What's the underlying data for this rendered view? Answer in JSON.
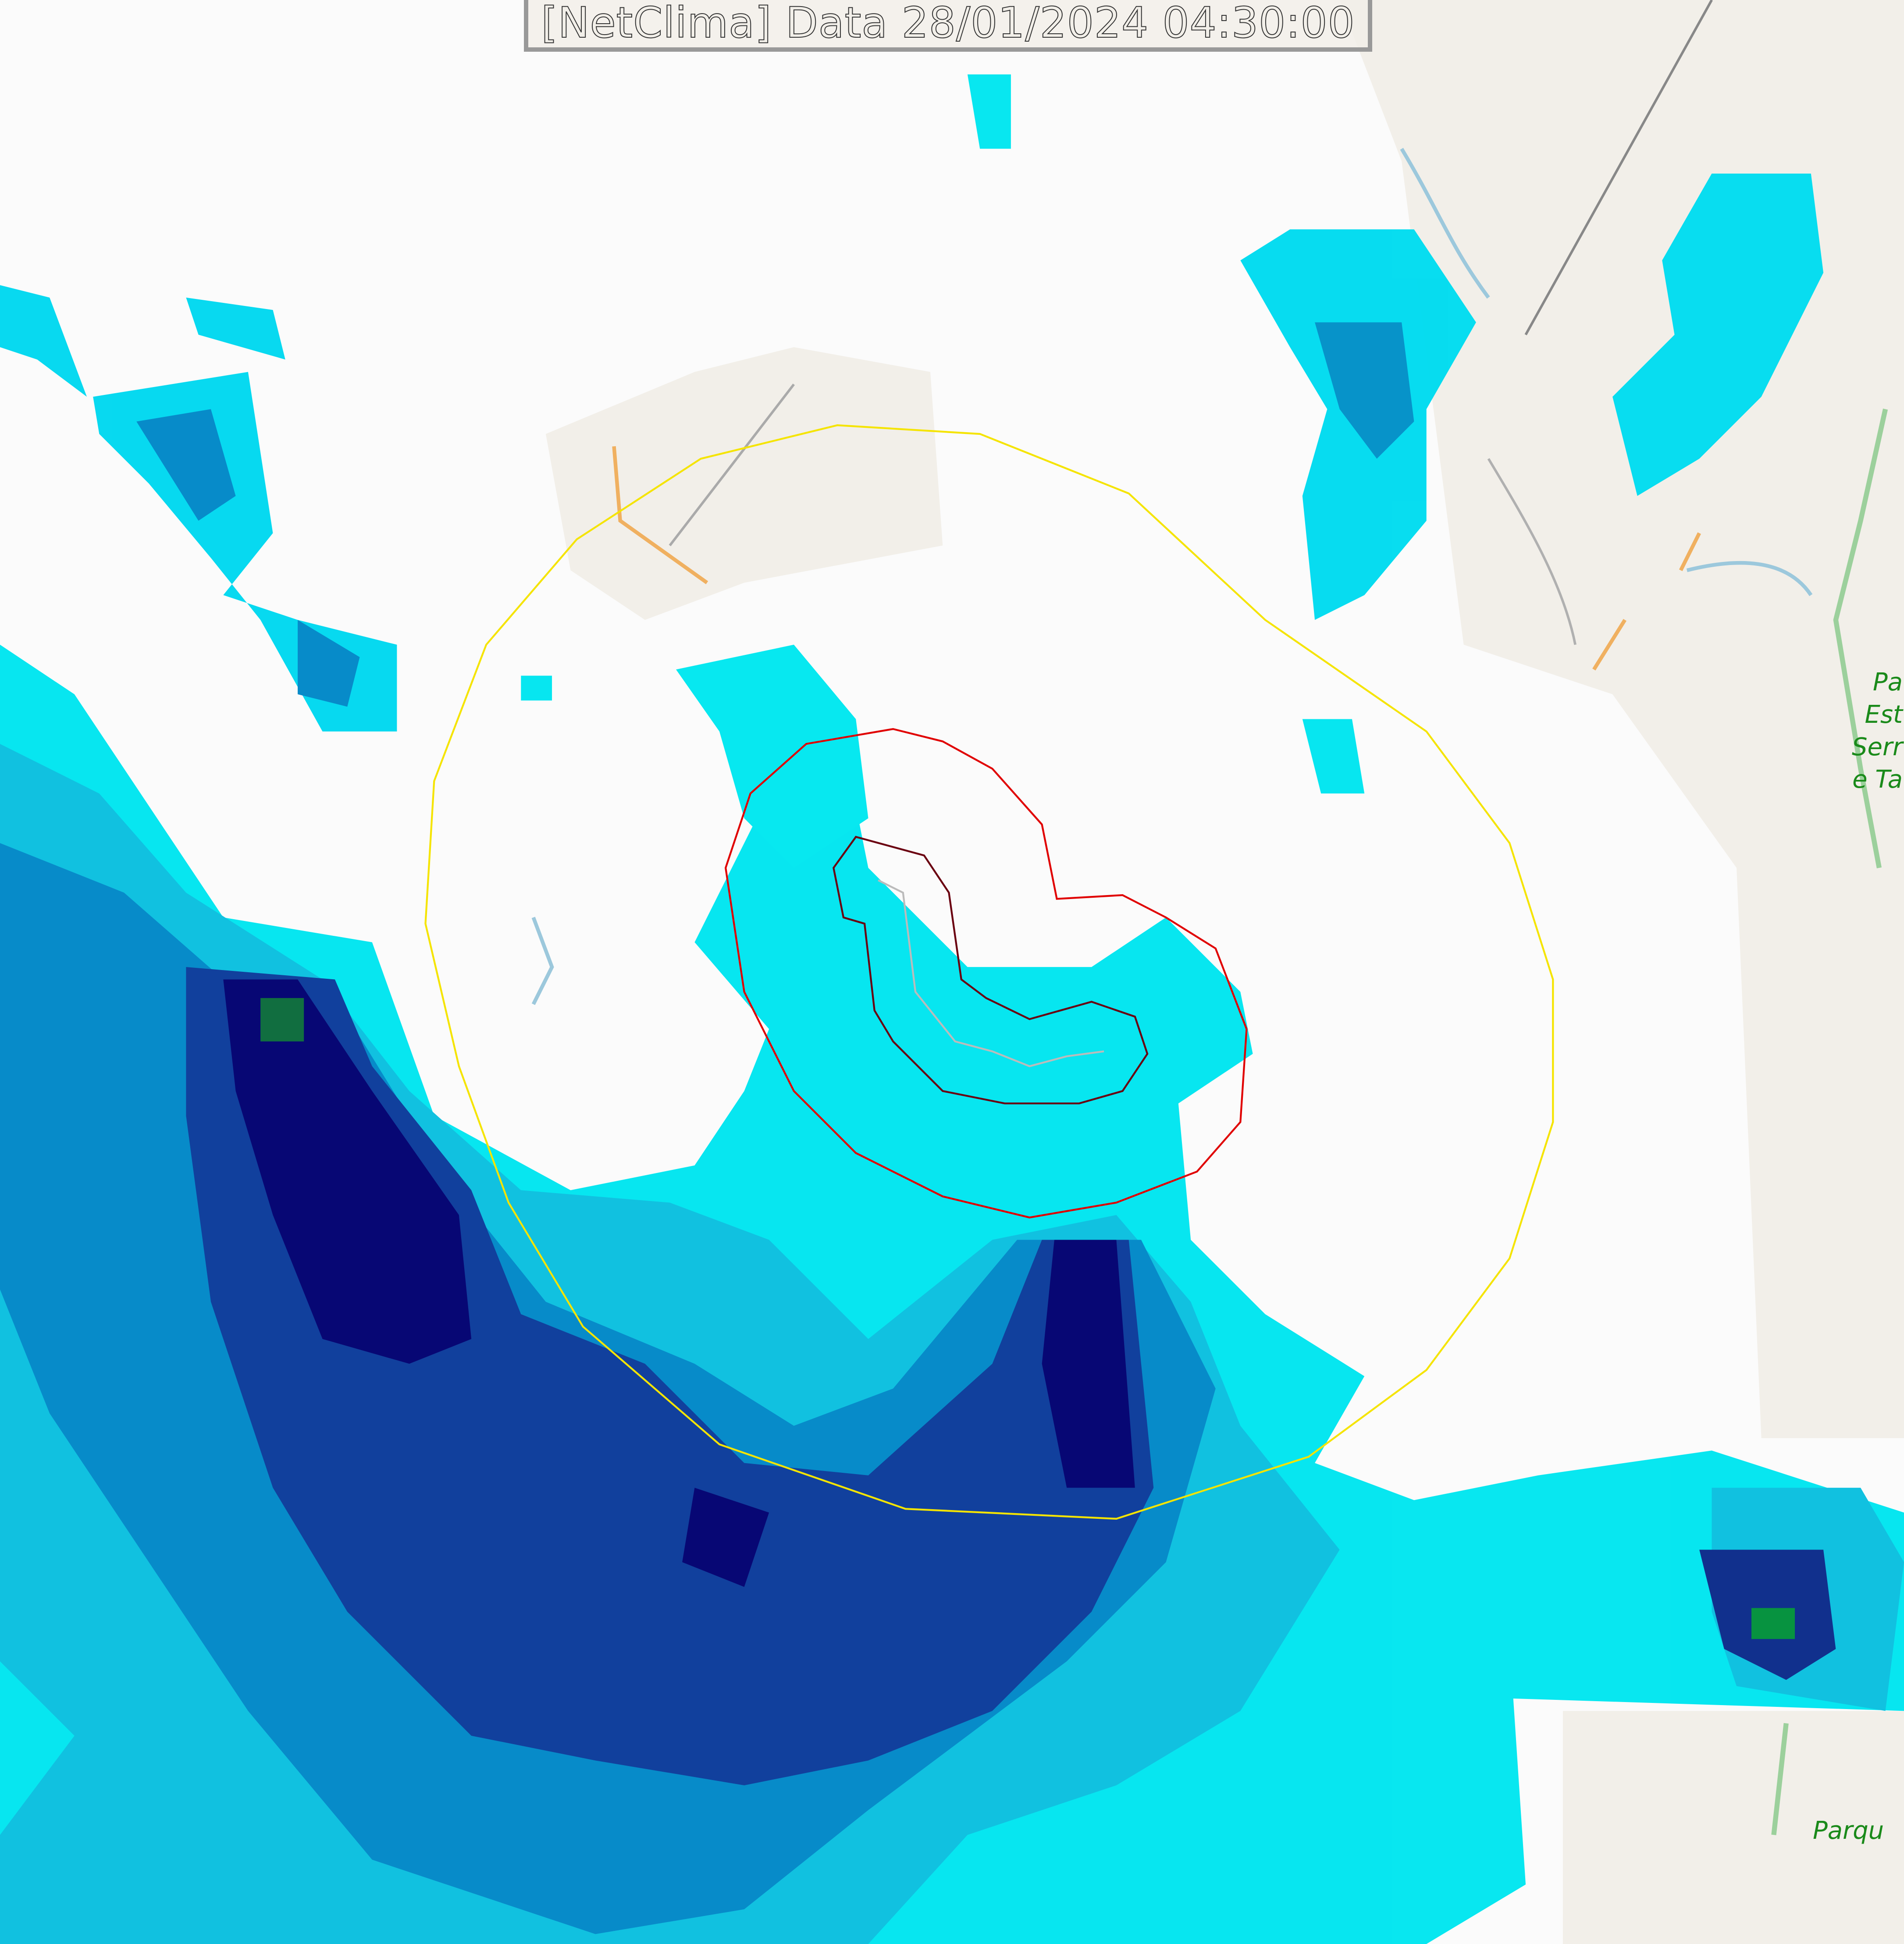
{
  "title": "[NetClima] Data 28/01/2024 04:30:00",
  "map_labels": {
    "park_top_lines": [
      "Pa",
      "Est",
      "Serr",
      "e Ta"
    ],
    "park_bottom": "Parqu"
  },
  "colors": {
    "range_ring_outer": "#f5e400",
    "range_ring_mid": "#e00000",
    "range_ring_inner": "#6a0010",
    "radar_light": "#00f0ff",
    "radar_mid": "#00a6d6",
    "radar_dark": "#0a2a8a",
    "radar_darkest": "#000060",
    "radar_green": "#00903a",
    "land": "#f2efe9",
    "park": "#1a8a1a"
  }
}
